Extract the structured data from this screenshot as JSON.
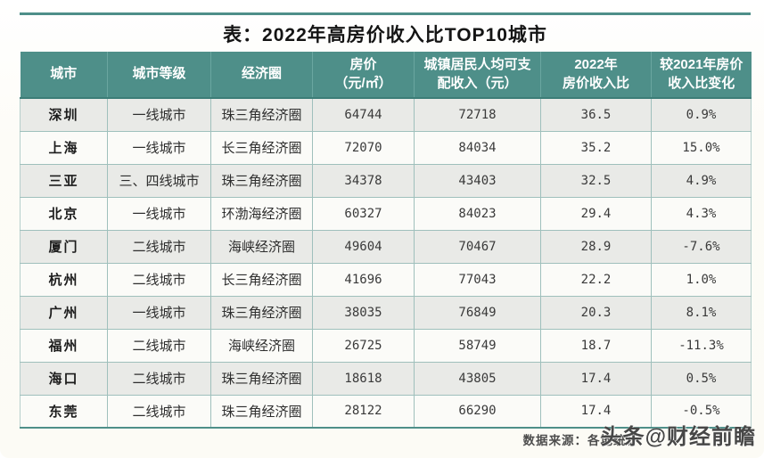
{
  "page": {
    "title": "表：2022年高房价收入比TOP10城市",
    "source_note": "数据来源：各地统计",
    "watermark": "头条@财经前瞻"
  },
  "colors": {
    "header_bg": "#4e8f89",
    "accent_rule": "#4e8f89",
    "cell_border": "#9fc0bc",
    "row_alt_bg": "#e9eae7",
    "row_base_bg": "#fbfbf8",
    "header_text": "#ffffff",
    "body_text": "#2e2e2e"
  },
  "table": {
    "columns": [
      "城市",
      "城市等级",
      "经济圈",
      "房价\n（元/㎡）",
      "城镇居民人均可支\n配收入（元）",
      "2022年\n房价收入比",
      "较2021年房价\n收入比变化"
    ],
    "rows": [
      [
        "深圳",
        "一线城市",
        "珠三角经济圈",
        "64744",
        "72718",
        "36.5",
        "0.9%"
      ],
      [
        "上海",
        "一线城市",
        "长三角经济圈",
        "72070",
        "84034",
        "35.2",
        "15.0%"
      ],
      [
        "三亚",
        "三、四线城市",
        "珠三角经济圈",
        "34378",
        "43403",
        "32.5",
        "4.9%"
      ],
      [
        "北京",
        "一线城市",
        "环渤海经济圈",
        "60327",
        "84023",
        "29.4",
        "4.3%"
      ],
      [
        "厦门",
        "二线城市",
        "海峡经济圈",
        "49604",
        "70467",
        "28.9",
        "-7.6%"
      ],
      [
        "杭州",
        "二线城市",
        "长三角经济圈",
        "41696",
        "77043",
        "22.2",
        "1.0%"
      ],
      [
        "广州",
        "一线城市",
        "珠三角经济圈",
        "38035",
        "76849",
        "20.3",
        "8.1%"
      ],
      [
        "福州",
        "二线城市",
        "海峡经济圈",
        "26725",
        "58749",
        "18.7",
        "-11.3%"
      ],
      [
        "海口",
        "二线城市",
        "珠三角经济圈",
        "18618",
        "43805",
        "17.4",
        "0.5%"
      ],
      [
        "东莞",
        "二线城市",
        "珠三角经济圈",
        "28122",
        "66290",
        "17.4",
        "-0.5%"
      ]
    ]
  },
  "chart_data": {
    "type": "table",
    "title": "表：2022年高房价收入比TOP10城市",
    "columns": [
      "城市",
      "城市等级",
      "经济圈",
      "房价（元/㎡）",
      "城镇居民人均可支配收入（元）",
      "2022年房价收入比",
      "较2021年房价收入比变化"
    ],
    "rows": [
      {
        "city": "深圳",
        "tier": "一线城市",
        "economic_zone": "珠三角经济圈",
        "house_price_yuan_per_sqm": 64744,
        "disposable_income_yuan": 72718,
        "ratio_2022": 36.5,
        "change_vs_2021": "0.9%"
      },
      {
        "city": "上海",
        "tier": "一线城市",
        "economic_zone": "长三角经济圈",
        "house_price_yuan_per_sqm": 72070,
        "disposable_income_yuan": 84034,
        "ratio_2022": 35.2,
        "change_vs_2021": "15.0%"
      },
      {
        "city": "三亚",
        "tier": "三、四线城市",
        "economic_zone": "珠三角经济圈",
        "house_price_yuan_per_sqm": 34378,
        "disposable_income_yuan": 43403,
        "ratio_2022": 32.5,
        "change_vs_2021": "4.9%"
      },
      {
        "city": "北京",
        "tier": "一线城市",
        "economic_zone": "环渤海经济圈",
        "house_price_yuan_per_sqm": 60327,
        "disposable_income_yuan": 84023,
        "ratio_2022": 29.4,
        "change_vs_2021": "4.3%"
      },
      {
        "city": "厦门",
        "tier": "二线城市",
        "economic_zone": "海峡经济圈",
        "house_price_yuan_per_sqm": 49604,
        "disposable_income_yuan": 70467,
        "ratio_2022": 28.9,
        "change_vs_2021": "-7.6%"
      },
      {
        "city": "杭州",
        "tier": "二线城市",
        "economic_zone": "长三角经济圈",
        "house_price_yuan_per_sqm": 41696,
        "disposable_income_yuan": 77043,
        "ratio_2022": 22.2,
        "change_vs_2021": "1.0%"
      },
      {
        "city": "广州",
        "tier": "一线城市",
        "economic_zone": "珠三角经济圈",
        "house_price_yuan_per_sqm": 38035,
        "disposable_income_yuan": 76849,
        "ratio_2022": 20.3,
        "change_vs_2021": "8.1%"
      },
      {
        "city": "福州",
        "tier": "二线城市",
        "economic_zone": "海峡经济圈",
        "house_price_yuan_per_sqm": 26725,
        "disposable_income_yuan": 58749,
        "ratio_2022": 18.7,
        "change_vs_2021": "-11.3%"
      },
      {
        "city": "海口",
        "tier": "二线城市",
        "economic_zone": "珠三角经济圈",
        "house_price_yuan_per_sqm": 18618,
        "disposable_income_yuan": 43805,
        "ratio_2022": 17.4,
        "change_vs_2021": "0.5%"
      },
      {
        "city": "东莞",
        "tier": "二线城市",
        "economic_zone": "珠三角经济圈",
        "house_price_yuan_per_sqm": 28122,
        "disposable_income_yuan": 66290,
        "ratio_2022": 17.4,
        "change_vs_2021": "-0.5%"
      }
    ]
  }
}
